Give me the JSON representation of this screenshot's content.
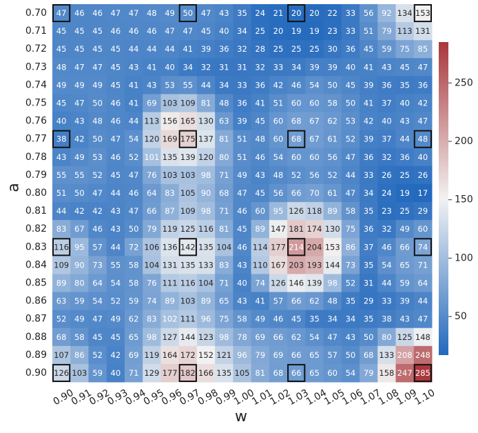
{
  "chart_data": {
    "type": "heatmap",
    "xlabel": "w",
    "ylabel": "a",
    "x_categories": [
      "0.90",
      "0.91",
      "0.92",
      "0.93",
      "0.94",
      "0.95",
      "0.96",
      "0.97",
      "0.98",
      "0.99",
      "1.00",
      "1.01",
      "1.02",
      "1.03",
      "1.04",
      "1.05",
      "1.06",
      "1.07",
      "1.08",
      "1.09",
      "1.10"
    ],
    "y_categories": [
      "0.70",
      "0.71",
      "0.72",
      "0.73",
      "0.74",
      "0.75",
      "0.76",
      "0.77",
      "0.78",
      "0.79",
      "0.80",
      "0.81",
      "0.82",
      "0.83",
      "0.84",
      "0.85",
      "0.86",
      "0.87",
      "0.88",
      "0.89",
      "0.90"
    ],
    "values": [
      [
        47,
        46,
        46,
        47,
        47,
        48,
        49,
        50,
        47,
        43,
        35,
        24,
        21,
        20,
        20,
        22,
        33,
        56,
        92,
        134,
        153
      ],
      [
        45,
        45,
        45,
        46,
        46,
        46,
        47,
        47,
        45,
        40,
        34,
        25,
        20,
        19,
        19,
        23,
        33,
        51,
        79,
        113,
        131
      ],
      [
        45,
        45,
        45,
        45,
        44,
        44,
        44,
        41,
        39,
        36,
        32,
        28,
        25,
        25,
        25,
        30,
        36,
        45,
        59,
        75,
        85
      ],
      [
        48,
        47,
        47,
        45,
        43,
        41,
        40,
        34,
        32,
        31,
        31,
        32,
        33,
        34,
        39,
        39,
        40,
        41,
        43,
        45,
        47
      ],
      [
        49,
        49,
        49,
        45,
        41,
        43,
        53,
        55,
        44,
        34,
        33,
        36,
        42,
        46,
        54,
        50,
        45,
        39,
        36,
        35,
        36
      ],
      [
        45,
        47,
        50,
        46,
        41,
        69,
        103,
        109,
        81,
        48,
        36,
        41,
        51,
        60,
        60,
        58,
        50,
        41,
        37,
        40,
        42
      ],
      [
        40,
        43,
        48,
        46,
        44,
        113,
        156,
        165,
        130,
        63,
        39,
        45,
        60,
        68,
        67,
        62,
        53,
        42,
        40,
        43,
        47
      ],
      [
        38,
        42,
        50,
        47,
        54,
        120,
        169,
        175,
        137,
        81,
        51,
        48,
        60,
        68,
        67,
        61,
        52,
        39,
        37,
        44,
        48
      ],
      [
        43,
        49,
        53,
        46,
        52,
        101,
        135,
        139,
        120,
        80,
        51,
        46,
        54,
        60,
        60,
        56,
        47,
        36,
        32,
        36,
        40
      ],
      [
        55,
        55,
        52,
        45,
        47,
        76,
        103,
        103,
        98,
        71,
        49,
        43,
        48,
        52,
        56,
        52,
        44,
        33,
        26,
        25,
        26
      ],
      [
        51,
        50,
        47,
        44,
        46,
        64,
        83,
        105,
        90,
        68,
        47,
        45,
        56,
        66,
        70,
        61,
        47,
        34,
        24,
        19,
        17
      ],
      [
        44,
        42,
        42,
        43,
        47,
        66,
        87,
        109,
        98,
        71,
        46,
        60,
        95,
        126,
        118,
        89,
        58,
        35,
        23,
        25,
        29
      ],
      [
        83,
        67,
        46,
        43,
        50,
        79,
        119,
        125,
        116,
        81,
        45,
        89,
        147,
        181,
        174,
        130,
        75,
        36,
        32,
        49,
        60
      ],
      [
        116,
        95,
        57,
        44,
        72,
        106,
        136,
        142,
        135,
        104,
        46,
        114,
        177,
        214,
        204,
        153,
        86,
        37,
        46,
        66,
        74
      ],
      [
        109,
        90,
        73,
        55,
        58,
        104,
        131,
        135,
        133,
        83,
        43,
        110,
        167,
        203,
        193,
        144,
        73,
        35,
        54,
        65,
        71
      ],
      [
        89,
        80,
        64,
        54,
        58,
        76,
        111,
        116,
        104,
        71,
        40,
        74,
        126,
        146,
        139,
        98,
        52,
        31,
        44,
        59,
        64
      ],
      [
        63,
        59,
        54,
        52,
        59,
        74,
        89,
        103,
        89,
        65,
        43,
        41,
        57,
        66,
        62,
        48,
        35,
        29,
        33,
        39,
        44
      ],
      [
        52,
        49,
        47,
        49,
        62,
        83,
        102,
        111,
        96,
        75,
        58,
        49,
        46,
        45,
        35,
        34,
        34,
        35,
        38,
        43,
        47
      ],
      [
        68,
        58,
        45,
        45,
        65,
        98,
        127,
        144,
        123,
        98,
        78,
        69,
        66,
        62,
        54,
        47,
        43,
        50,
        80,
        125,
        148
      ],
      [
        107,
        86,
        52,
        42,
        69,
        119,
        164,
        172,
        152,
        121,
        96,
        79,
        69,
        66,
        65,
        57,
        50,
        68,
        133,
        208,
        248
      ],
      [
        126,
        103,
        59,
        40,
        71,
        129,
        177,
        182,
        166,
        135,
        105,
        81,
        68,
        66,
        65,
        60,
        54,
        79,
        158,
        247,
        285
      ]
    ],
    "highlighted_cells": [
      {
        "a": "0.70",
        "w": "0.90"
      },
      {
        "a": "0.70",
        "w": "0.97"
      },
      {
        "a": "0.70",
        "w": "1.03"
      },
      {
        "a": "0.70",
        "w": "1.10"
      },
      {
        "a": "0.77",
        "w": "0.90"
      },
      {
        "a": "0.77",
        "w": "0.97"
      },
      {
        "a": "0.77",
        "w": "1.03"
      },
      {
        "a": "0.77",
        "w": "1.10"
      },
      {
        "a": "0.83",
        "w": "0.90"
      },
      {
        "a": "0.83",
        "w": "0.97"
      },
      {
        "a": "0.83",
        "w": "1.03"
      },
      {
        "a": "0.83",
        "w": "1.10"
      },
      {
        "a": "0.90",
        "w": "0.90"
      },
      {
        "a": "0.90",
        "w": "0.97"
      },
      {
        "a": "0.90",
        "w": "1.03"
      },
      {
        "a": "0.90",
        "w": "1.10"
      }
    ],
    "colormap": "vlag",
    "color_range": [
      17,
      285
    ],
    "colorbar_ticks": [
      "50",
      "100",
      "150",
      "200",
      "250"
    ],
    "colorbar_tick_values": [
      50,
      100,
      150,
      200,
      250
    ],
    "colors": {
      "low": "#2369bd",
      "mid": "#f2f2f2",
      "high": "#a9373b"
    }
  }
}
